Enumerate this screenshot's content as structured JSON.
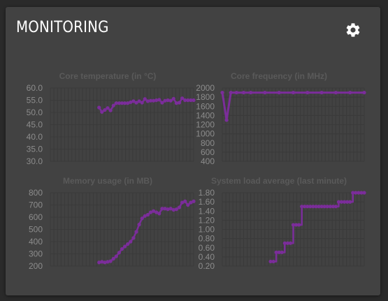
{
  "header": {
    "title": "MONITORING",
    "settings_icon": "gear-icon"
  },
  "colors": {
    "series": "#7b2d9a",
    "panel": "#424242",
    "grid": "#3a3a3a"
  },
  "chart_data": [
    {
      "id": "temp",
      "type": "line",
      "title": "Core temperature (in °C)",
      "ylim": [
        30,
        60
      ],
      "yticks": [
        "60.0",
        "55.0",
        "50.0",
        "45.0",
        "40.0",
        "35.0",
        "30.0"
      ],
      "x": [
        0.34,
        0.36,
        0.38,
        0.4,
        0.42,
        0.44,
        0.46,
        0.48,
        0.5,
        0.52,
        0.54,
        0.56,
        0.58,
        0.6,
        0.62,
        0.64,
        0.66,
        0.68,
        0.7,
        0.72,
        0.74,
        0.76,
        0.78,
        0.8,
        0.82,
        0.84,
        0.86,
        0.88,
        0.9,
        0.92,
        0.94,
        0.96,
        0.98,
        1.0
      ],
      "values": [
        52.0,
        50.2,
        51.0,
        51.8,
        50.8,
        52.8,
        53.8,
        53.8,
        53.8,
        53.8,
        53.8,
        54.2,
        54.6,
        54.0,
        54.6,
        54.0,
        55.5,
        54.6,
        54.8,
        54.8,
        55.0,
        55.2,
        54.0,
        54.8,
        55.0,
        54.8,
        55.6,
        53.8,
        54.0,
        55.8,
        55.0,
        55.0,
        55.0,
        55.0
      ],
      "grid": true
    },
    {
      "id": "freq",
      "type": "line",
      "title": "Core frequency (in MHz)",
      "ylim": [
        400,
        2000
      ],
      "yticks": [
        "2000",
        "1800",
        "1600",
        "1400",
        "1200",
        "1000",
        "800",
        "600",
        "400"
      ],
      "x": [
        0.0,
        0.03,
        0.06,
        0.1,
        0.15,
        0.2,
        0.3,
        0.4,
        0.5,
        0.6,
        0.7,
        0.8,
        0.9,
        1.0
      ],
      "values": [
        1900,
        1300,
        1900,
        1900,
        1900,
        1900,
        1900,
        1900,
        1900,
        1900,
        1900,
        1900,
        1900,
        1900
      ],
      "grid": true
    },
    {
      "id": "mem",
      "type": "line",
      "title": "Memory usage (in MB)",
      "ylim": [
        200,
        800
      ],
      "yticks": [
        "800",
        "700",
        "600",
        "500",
        "400",
        "300",
        "200"
      ],
      "x": [
        0.34,
        0.36,
        0.38,
        0.4,
        0.42,
        0.44,
        0.46,
        0.48,
        0.5,
        0.52,
        0.54,
        0.56,
        0.58,
        0.6,
        0.62,
        0.64,
        0.66,
        0.68,
        0.7,
        0.72,
        0.74,
        0.76,
        0.78,
        0.8,
        0.82,
        0.84,
        0.86,
        0.88,
        0.9,
        0.92,
        0.94,
        0.96,
        0.98,
        1.0
      ],
      "values": [
        230,
        235,
        230,
        235,
        240,
        260,
        280,
        310,
        340,
        360,
        380,
        400,
        430,
        480,
        540,
        590,
        610,
        620,
        640,
        650,
        640,
        630,
        670,
        670,
        665,
        670,
        660,
        665,
        680,
        720,
        730,
        700,
        720,
        730
      ],
      "grid": true
    },
    {
      "id": "load",
      "type": "line",
      "title": "System load average (last minute)",
      "ylim": [
        0.2,
        1.8
      ],
      "yticks": [
        "1.80",
        "1.60",
        "1.40",
        "1.20",
        "1.00",
        "0.80",
        "0.60",
        "0.40",
        "0.20"
      ],
      "x": [
        0.34,
        0.36,
        0.38,
        0.4,
        0.42,
        0.44,
        0.46,
        0.48,
        0.5,
        0.52,
        0.54,
        0.56,
        0.58,
        0.6,
        0.62,
        0.64,
        0.66,
        0.68,
        0.7,
        0.72,
        0.74,
        0.76,
        0.78,
        0.8,
        0.82,
        0.84,
        0.86,
        0.88,
        0.9,
        0.92,
        0.94,
        0.96,
        0.98,
        1.0
      ],
      "values": [
        0.3,
        0.3,
        0.5,
        0.5,
        0.5,
        0.7,
        0.7,
        0.7,
        1.1,
        1.1,
        1.1,
        1.5,
        1.5,
        1.5,
        1.5,
        1.5,
        1.5,
        1.5,
        1.5,
        1.5,
        1.5,
        1.5,
        1.5,
        1.5,
        1.6,
        1.6,
        1.6,
        1.6,
        1.6,
        1.8,
        1.8,
        1.8,
        1.8,
        1.8
      ],
      "grid": true
    }
  ]
}
